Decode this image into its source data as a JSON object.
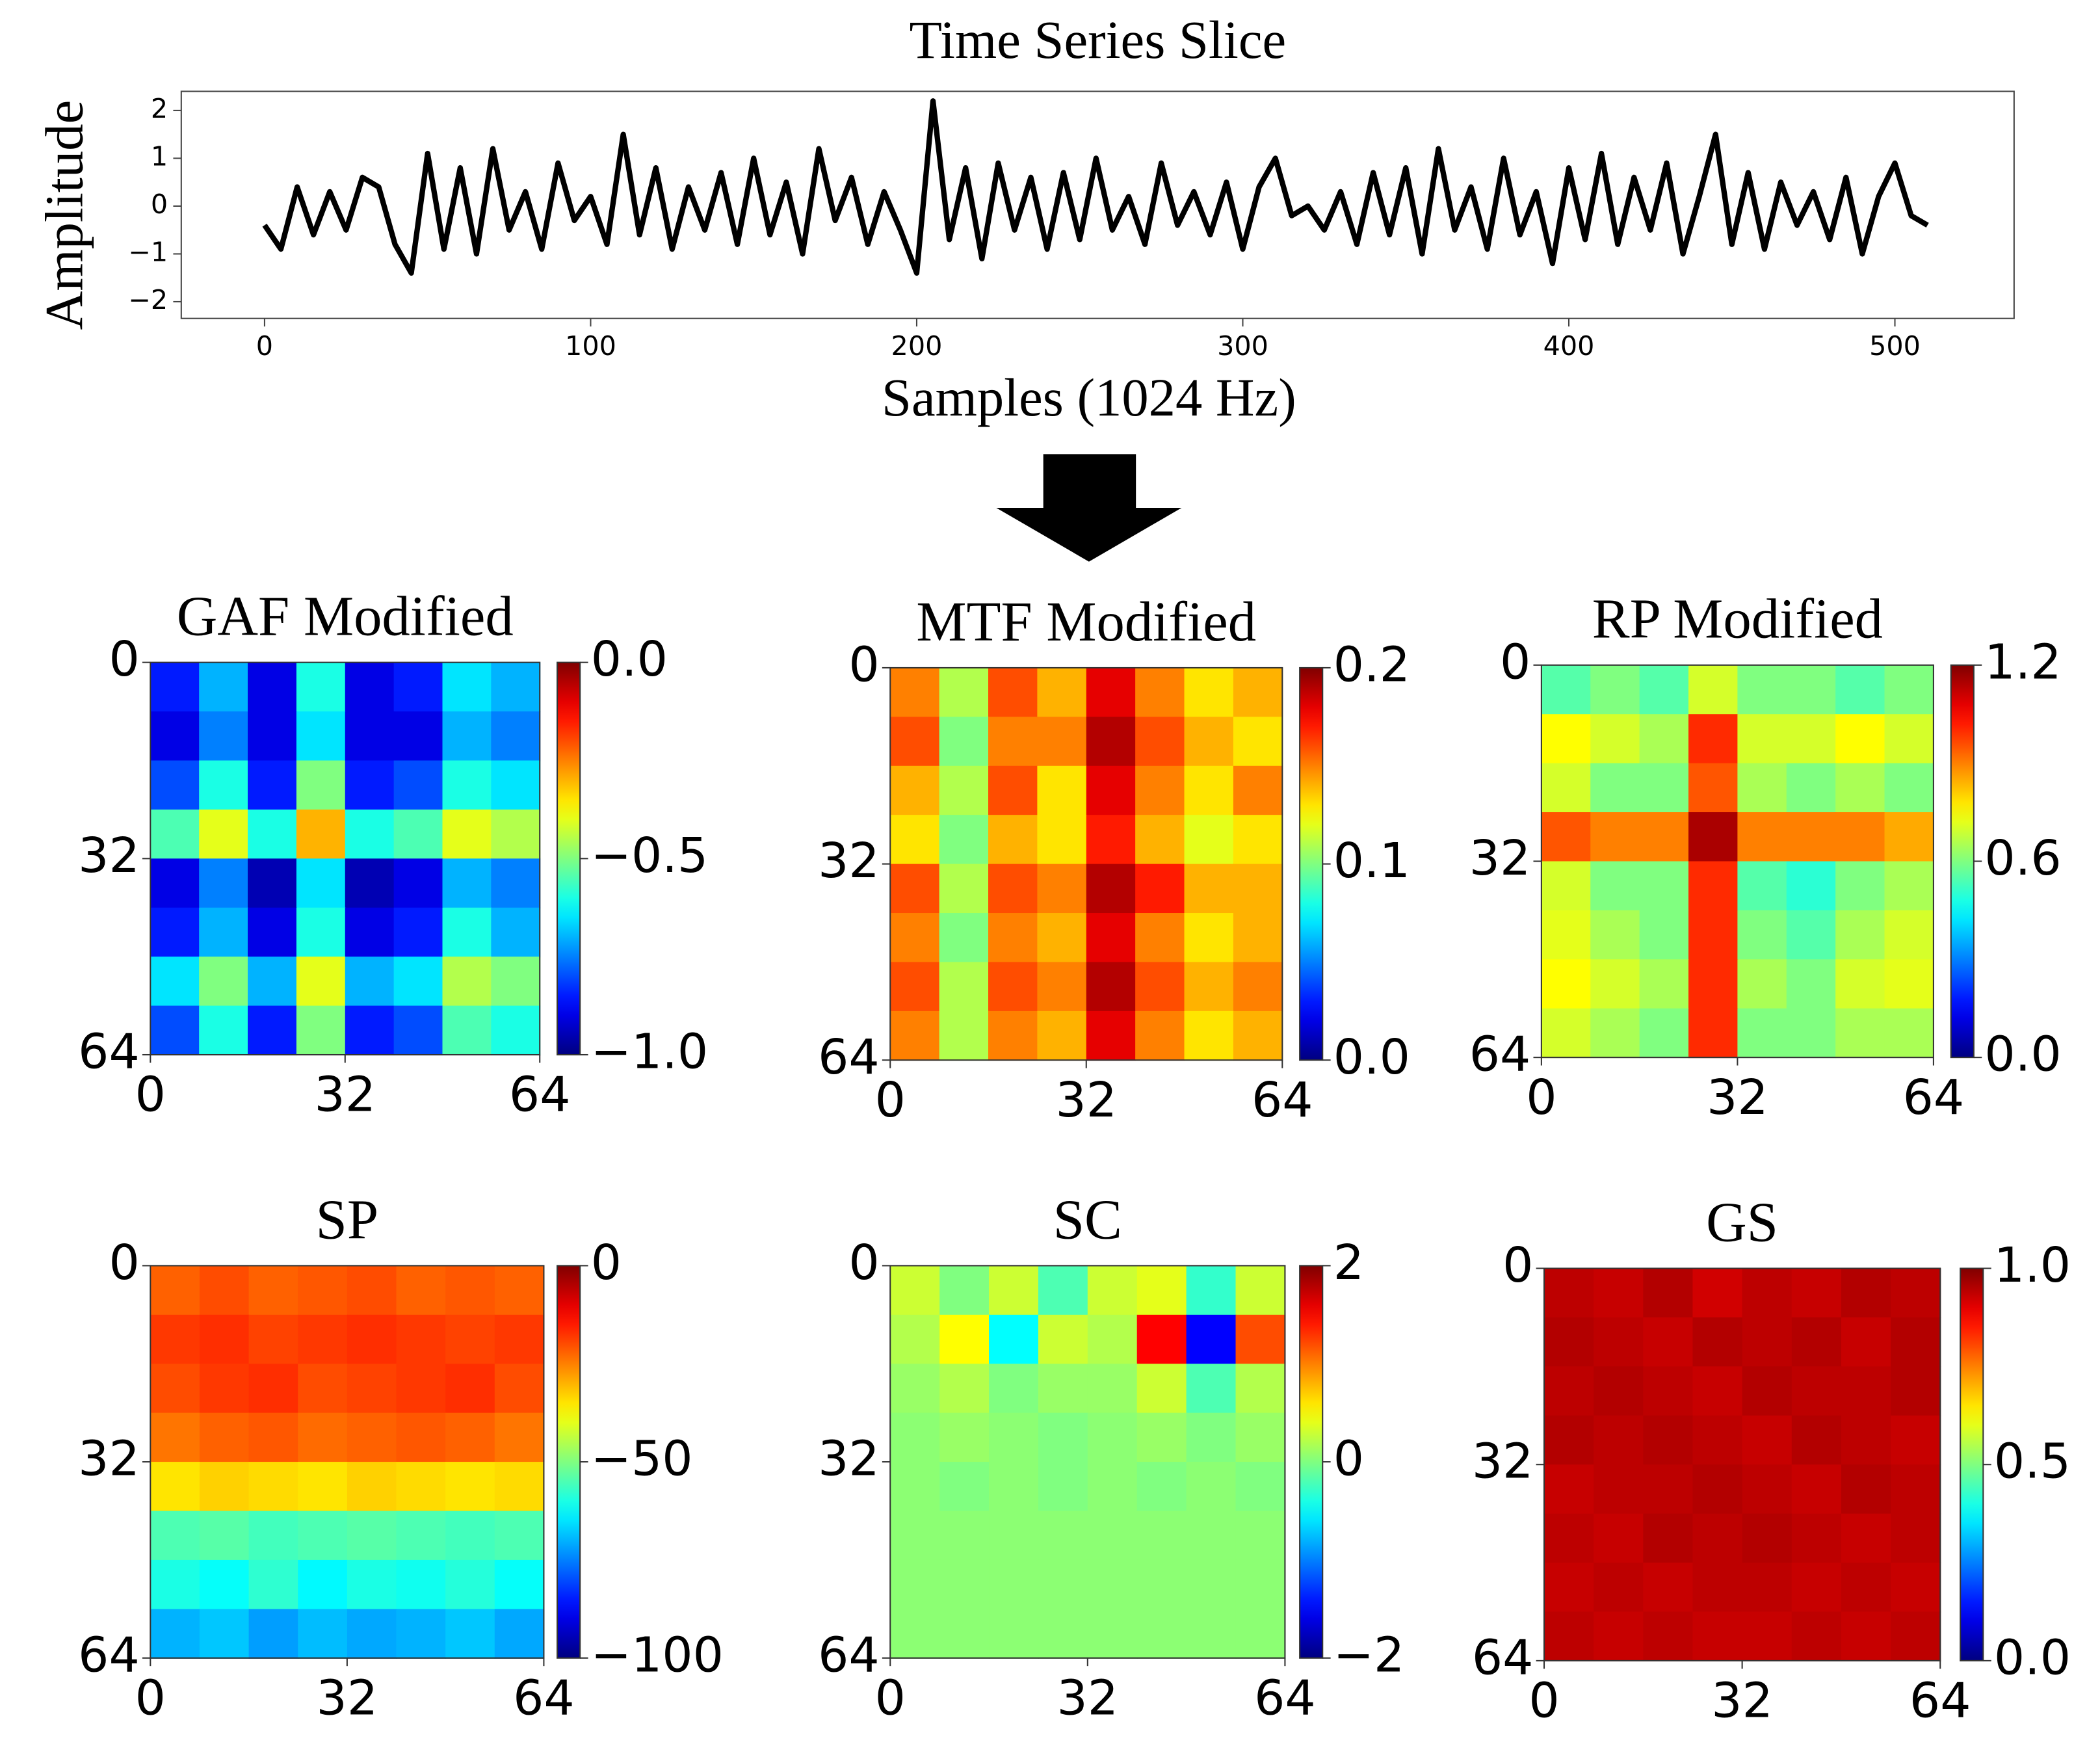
{
  "chart_data": [
    {
      "type": "line",
      "title": "Time Series Slice",
      "xlabel": "Samples (1024 Hz)",
      "ylabel": "Amplitude",
      "color": "#000000",
      "x": [
        0,
        5,
        10,
        15,
        20,
        25,
        30,
        35,
        40,
        45,
        50,
        55,
        60,
        65,
        70,
        75,
        80,
        85,
        90,
        95,
        100,
        105,
        110,
        115,
        120,
        125,
        130,
        135,
        140,
        145,
        150,
        155,
        160,
        165,
        170,
        175,
        180,
        185,
        190,
        195,
        200,
        205,
        210,
        215,
        220,
        225,
        230,
        235,
        240,
        245,
        250,
        255,
        260,
        265,
        270,
        275,
        280,
        285,
        290,
        295,
        300,
        305,
        310,
        315,
        320,
        325,
        330,
        335,
        340,
        345,
        350,
        355,
        360,
        365,
        370,
        375,
        380,
        385,
        390,
        395,
        400,
        405,
        410,
        415,
        420,
        425,
        430,
        435,
        440,
        445,
        450,
        455,
        460,
        465,
        470,
        475,
        480,
        485,
        490,
        495,
        500,
        505,
        510
      ],
      "values": [
        -0.4,
        -0.9,
        0.4,
        -0.6,
        0.3,
        -0.5,
        0.6,
        0.4,
        -0.8,
        -1.4,
        1.1,
        -0.9,
        0.8,
        -1.0,
        1.2,
        -0.5,
        0.3,
        -0.9,
        0.9,
        -0.3,
        0.2,
        -0.8,
        1.5,
        -0.6,
        0.8,
        -0.9,
        0.4,
        -0.5,
        0.7,
        -0.8,
        1.0,
        -0.6,
        0.5,
        -1.0,
        1.2,
        -0.3,
        0.6,
        -0.8,
        0.3,
        -0.5,
        -1.4,
        2.2,
        -0.7,
        0.8,
        -1.1,
        0.9,
        -0.5,
        0.6,
        -0.9,
        0.7,
        -0.7,
        1.0,
        -0.5,
        0.2,
        -0.8,
        0.9,
        -0.4,
        0.3,
        -0.6,
        0.5,
        -0.9,
        0.4,
        1.0,
        -0.2,
        0.0,
        -0.5,
        0.3,
        -0.8,
        0.7,
        -0.6,
        0.8,
        -1.0,
        1.2,
        -0.5,
        0.4,
        -0.9,
        1.0,
        -0.6,
        0.3,
        -1.2,
        0.8,
        -0.7,
        1.1,
        -0.8,
        0.6,
        -0.5,
        0.9,
        -1.0,
        0.2,
        1.5,
        -0.8,
        0.7,
        -0.9,
        0.5,
        -0.4,
        0.3,
        -0.7,
        0.6,
        -1.0,
        0.2,
        0.9,
        -0.2,
        -0.4
      ],
      "xlim": [
        -25.55,
        536.55
      ],
      "ylim": [
        -2.35,
        2.4
      ],
      "xticks": [
        0,
        100,
        200,
        300,
        400,
        500
      ],
      "yticks": [
        {
          "value": -2,
          "label": "−2"
        },
        {
          "value": -1,
          "label": "−1"
        },
        0,
        1,
        2
      ]
    },
    {
      "type": "heatmap",
      "title": "GAF Modified",
      "colormap": "jet",
      "xlim": [
        0,
        64
      ],
      "ylim": [
        64,
        0
      ],
      "xticks": [
        0,
        32,
        64
      ],
      "yticks": [
        0,
        32,
        64
      ],
      "clim": [
        -1,
        0
      ],
      "cticks": [
        {
          "value": 0,
          "label": "0.0"
        },
        {
          "value": -0.5,
          "label": "−0.5"
        },
        {
          "value": -1,
          "label": "−1.0"
        }
      ],
      "z": [
        [
          -0.85,
          -0.7,
          -0.9,
          -0.6,
          -0.9,
          -0.85,
          -0.65,
          -0.7
        ],
        [
          -0.9,
          -0.75,
          -0.9,
          -0.65,
          -0.9,
          -0.9,
          -0.7,
          -0.75
        ],
        [
          -0.8,
          -0.6,
          -0.85,
          -0.5,
          -0.85,
          -0.8,
          -0.6,
          -0.65
        ],
        [
          -0.55,
          -0.4,
          -0.6,
          -0.3,
          -0.6,
          -0.55,
          -0.4,
          -0.45
        ],
        [
          -0.9,
          -0.75,
          -0.95,
          -0.65,
          -0.95,
          -0.9,
          -0.7,
          -0.75
        ],
        [
          -0.85,
          -0.7,
          -0.9,
          -0.6,
          -0.9,
          -0.85,
          -0.6,
          -0.7
        ],
        [
          -0.65,
          -0.5,
          -0.7,
          -0.4,
          -0.7,
          -0.65,
          -0.45,
          -0.5
        ],
        [
          -0.8,
          -0.6,
          -0.85,
          -0.5,
          -0.85,
          -0.8,
          -0.55,
          -0.6
        ]
      ]
    },
    {
      "type": "heatmap",
      "title": "MTF Modified",
      "colormap": "jet",
      "xlim": [
        0,
        64
      ],
      "ylim": [
        64,
        0
      ],
      "xticks": [
        0,
        32,
        64
      ],
      "yticks": [
        0,
        32,
        64
      ],
      "clim": [
        0,
        0.2
      ],
      "cticks": [
        {
          "value": 0.2,
          "label": "0.2"
        },
        0.1,
        {
          "value": 0,
          "label": "0.0"
        }
      ],
      "z": [
        [
          0.15,
          0.11,
          0.16,
          0.14,
          0.18,
          0.15,
          0.13,
          0.14
        ],
        [
          0.16,
          0.1,
          0.15,
          0.15,
          0.19,
          0.16,
          0.14,
          0.13
        ],
        [
          0.14,
          0.11,
          0.16,
          0.13,
          0.18,
          0.15,
          0.13,
          0.15
        ],
        [
          0.13,
          0.1,
          0.14,
          0.13,
          0.17,
          0.14,
          0.12,
          0.13
        ],
        [
          0.16,
          0.11,
          0.16,
          0.15,
          0.19,
          0.17,
          0.14,
          0.14
        ],
        [
          0.15,
          0.1,
          0.15,
          0.14,
          0.18,
          0.15,
          0.13,
          0.14
        ],
        [
          0.16,
          0.11,
          0.16,
          0.15,
          0.19,
          0.16,
          0.14,
          0.15
        ],
        [
          0.15,
          0.11,
          0.15,
          0.14,
          0.18,
          0.15,
          0.13,
          0.14
        ]
      ]
    },
    {
      "type": "heatmap",
      "title": "RP Modified",
      "colormap": "jet",
      "xlim": [
        0,
        64
      ],
      "ylim": [
        64,
        0
      ],
      "xticks": [
        0,
        32,
        64
      ],
      "yticks": [
        0,
        32,
        64
      ],
      "clim": [
        0,
        1.2
      ],
      "cticks": [
        {
          "value": 1.2,
          "label": "1.2"
        },
        0.6,
        {
          "value": 0,
          "label": "0.0"
        }
      ],
      "z": [
        [
          0.55,
          0.6,
          0.55,
          0.7,
          0.6,
          0.6,
          0.55,
          0.6
        ],
        [
          0.75,
          0.7,
          0.65,
          1.0,
          0.7,
          0.7,
          0.75,
          0.7
        ],
        [
          0.7,
          0.6,
          0.6,
          0.95,
          0.65,
          0.6,
          0.65,
          0.6
        ],
        [
          0.95,
          0.9,
          0.9,
          1.15,
          0.9,
          0.9,
          0.9,
          0.85
        ],
        [
          0.7,
          0.6,
          0.6,
          1.0,
          0.55,
          0.5,
          0.6,
          0.65
        ],
        [
          0.72,
          0.65,
          0.6,
          1.0,
          0.6,
          0.55,
          0.65,
          0.7
        ],
        [
          0.75,
          0.7,
          0.65,
          1.0,
          0.65,
          0.6,
          0.7,
          0.72
        ],
        [
          0.7,
          0.65,
          0.6,
          1.0,
          0.6,
          0.6,
          0.65,
          0.65
        ]
      ]
    },
    {
      "type": "heatmap",
      "title": "SP",
      "colormap": "jet",
      "xlim": [
        0,
        64
      ],
      "ylim": [
        64,
        0
      ],
      "xticks": [
        0,
        32,
        64
      ],
      "yticks": [
        0,
        32,
        64
      ],
      "clim": [
        -100,
        0
      ],
      "cticks": [
        0,
        {
          "value": -50,
          "label": "−50"
        },
        {
          "value": -100,
          "label": "−100"
        }
      ],
      "z": [
        [
          -22,
          -20,
          -22,
          -21,
          -20,
          -22,
          -21,
          -22
        ],
        [
          -18,
          -17,
          -19,
          -18,
          -17,
          -18,
          -19,
          -18
        ],
        [
          -20,
          -18,
          -17,
          -20,
          -19,
          -18,
          -17,
          -20
        ],
        [
          -24,
          -22,
          -21,
          -23,
          -22,
          -21,
          -22,
          -24
        ],
        [
          -35,
          -33,
          -34,
          -35,
          -33,
          -34,
          -35,
          -34
        ],
        [
          -55,
          -54,
          -56,
          -55,
          -54,
          -55,
          -56,
          -55
        ],
        [
          -60,
          -62,
          -58,
          -63,
          -60,
          -61,
          -59,
          -62
        ],
        [
          -70,
          -68,
          -72,
          -69,
          -71,
          -70,
          -68,
          -71
        ]
      ]
    },
    {
      "type": "heatmap",
      "title": "SC",
      "colormap": "jet",
      "xlim": [
        0,
        64
      ],
      "ylim": [
        64,
        0
      ],
      "xticks": [
        0,
        32,
        64
      ],
      "yticks": [
        0,
        32,
        64
      ],
      "clim": [
        -2,
        2
      ],
      "cticks": [
        2,
        0,
        {
          "value": -2,
          "label": "−2"
        }
      ],
      "z": [
        [
          0.3,
          0.0,
          0.3,
          -0.2,
          0.3,
          0.4,
          -0.3,
          0.3
        ],
        [
          0.2,
          0.5,
          -0.5,
          0.3,
          0.2,
          1.5,
          -1.5,
          1.2
        ],
        [
          0.1,
          0.2,
          0.0,
          0.1,
          0.1,
          0.3,
          -0.2,
          0.2
        ],
        [
          0.05,
          0.1,
          0.05,
          0.0,
          0.05,
          0.1,
          0.0,
          0.1
        ],
        [
          0.05,
          0.0,
          0.05,
          0.0,
          0.05,
          0.0,
          0.05,
          0.0
        ],
        [
          0.05,
          0.05,
          0.05,
          0.05,
          0.05,
          0.05,
          0.05,
          0.05
        ],
        [
          0.05,
          0.05,
          0.05,
          0.05,
          0.05,
          0.05,
          0.05,
          0.05
        ],
        [
          0.05,
          0.05,
          0.05,
          0.05,
          0.05,
          0.05,
          0.05,
          0.05
        ]
      ]
    },
    {
      "type": "heatmap",
      "title": "GS",
      "colormap": "jet",
      "xlim": [
        0,
        64
      ],
      "ylim": [
        64,
        0
      ],
      "xticks": [
        0,
        32,
        64
      ],
      "yticks": [
        0,
        32,
        64
      ],
      "clim": [
        0,
        1
      ],
      "cticks": [
        {
          "value": 1,
          "label": "1.0"
        },
        0.5,
        {
          "value": 0,
          "label": "0.0"
        }
      ],
      "z": [
        [
          0.94,
          0.93,
          0.95,
          0.92,
          0.94,
          0.93,
          0.95,
          0.94
        ],
        [
          0.95,
          0.94,
          0.93,
          0.95,
          0.94,
          0.95,
          0.93,
          0.95
        ],
        [
          0.94,
          0.95,
          0.94,
          0.93,
          0.95,
          0.94,
          0.94,
          0.95
        ],
        [
          0.95,
          0.94,
          0.95,
          0.94,
          0.93,
          0.95,
          0.94,
          0.93
        ],
        [
          0.93,
          0.94,
          0.94,
          0.95,
          0.94,
          0.93,
          0.95,
          0.94
        ],
        [
          0.94,
          0.93,
          0.95,
          0.94,
          0.95,
          0.94,
          0.93,
          0.94
        ],
        [
          0.93,
          0.94,
          0.93,
          0.94,
          0.94,
          0.93,
          0.94,
          0.93
        ],
        [
          0.94,
          0.93,
          0.94,
          0.93,
          0.93,
          0.94,
          0.93,
          0.94
        ]
      ]
    }
  ]
}
